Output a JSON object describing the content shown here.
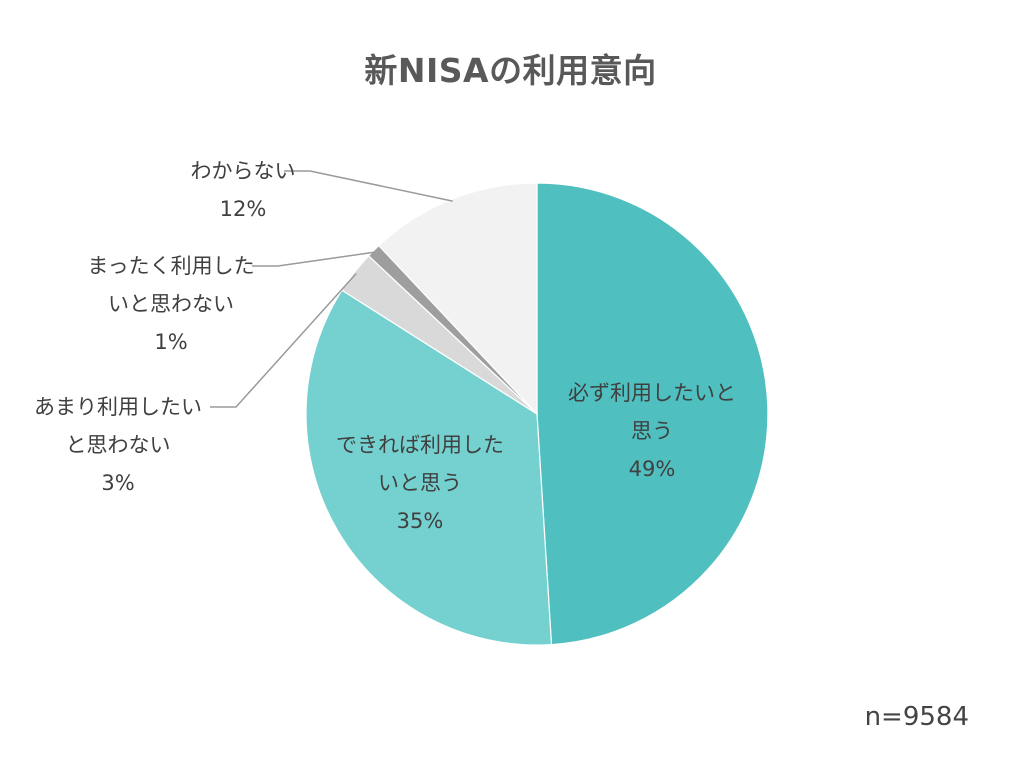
{
  "chart_data": {
    "type": "pie",
    "title": "新NISAの利用意向",
    "note": "n=9584",
    "start_angle": "12 o'clock",
    "direction": "clockwise",
    "slices": [
      {
        "label": "必ず利用したいと思う",
        "label_lines": [
          "必ず利用したいと",
          "思う"
        ],
        "value": 49,
        "value_label": "49%",
        "color": "#4fbfbf",
        "label_position": "inside"
      },
      {
        "label": "できれば利用したいと思う",
        "label_lines": [
          "できれば利用した",
          "いと思う"
        ],
        "value": 35,
        "value_label": "35%",
        "color": "#75d1cf",
        "label_position": "inside"
      },
      {
        "label": "あまり利用したいと思わない",
        "label_lines": [
          "あまり利用したい",
          "と思わない"
        ],
        "value": 3,
        "value_label": "3%",
        "color": "#d9d9d9",
        "label_position": "outside"
      },
      {
        "label": "まったく利用したいと思わない",
        "label_lines": [
          "まったく利用した",
          "いと思わない"
        ],
        "value": 1,
        "value_label": "1%",
        "color": "#9e9e9e",
        "label_position": "outside"
      },
      {
        "label": "わからない",
        "label_lines": [
          "わからない"
        ],
        "value": 12,
        "value_label": "12%",
        "color": "#f2f2f2",
        "label_position": "outside"
      }
    ]
  }
}
